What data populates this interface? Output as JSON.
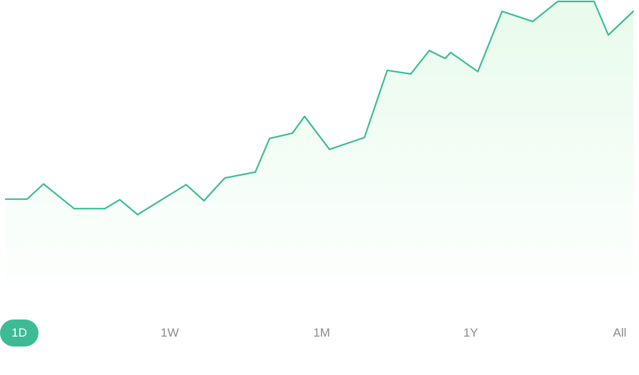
{
  "chart_data": {
    "type": "area",
    "series": [
      {
        "values": [
          40.0,
          40.0,
          44.6,
          37.1,
          37.1,
          39.8,
          35.3,
          44.4,
          39.5,
          46.4,
          48.2,
          58.4,
          60.0,
          65.1,
          55.1,
          58.7,
          79.1,
          78.0,
          85.1,
          82.7,
          84.5,
          78.7,
          97.0,
          93.9,
          100.0,
          100.0,
          89.8,
          97.0
        ]
      }
    ],
    "ylim": [
      0,
      100
    ],
    "line_color": "#3dbb95",
    "fill_color_top": "#e8fbec",
    "fill_color_bottom": "#ffffff",
    "grid": false,
    "legend": "none"
  },
  "time_range": {
    "options": [
      {
        "id": "1d",
        "label": "1D"
      },
      {
        "id": "1w",
        "label": "1W"
      },
      {
        "id": "1m",
        "label": "1M"
      },
      {
        "id": "1y",
        "label": "1Y"
      },
      {
        "id": "all",
        "label": "All"
      }
    ],
    "selected": "1D",
    "accent_color": "#3dbb95"
  }
}
